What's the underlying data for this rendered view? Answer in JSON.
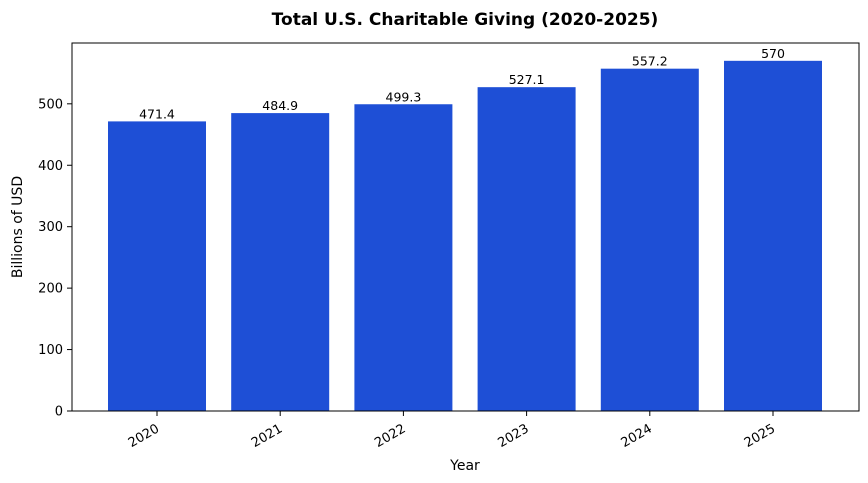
{
  "chart_data": {
    "type": "bar",
    "title": "Total U.S. Charitable Giving (2020-2025)",
    "xlabel": "Year",
    "ylabel": "Billions of USD",
    "categories": [
      "2020",
      "2021",
      "2022",
      "2023",
      "2024",
      "2025"
    ],
    "values": [
      471.4,
      484.9,
      499.3,
      527.1,
      557.2,
      570
    ],
    "value_labels": [
      "471.4",
      "484.9",
      "499.3",
      "527.1",
      "557.2",
      "570"
    ],
    "ylim": [
      0,
      599
    ],
    "yticks": [
      0,
      100,
      200,
      300,
      400,
      500
    ],
    "bar_color": "#1e4fd6",
    "grid": false,
    "legend": "none",
    "xtick_rotation": "30 degrees"
  }
}
